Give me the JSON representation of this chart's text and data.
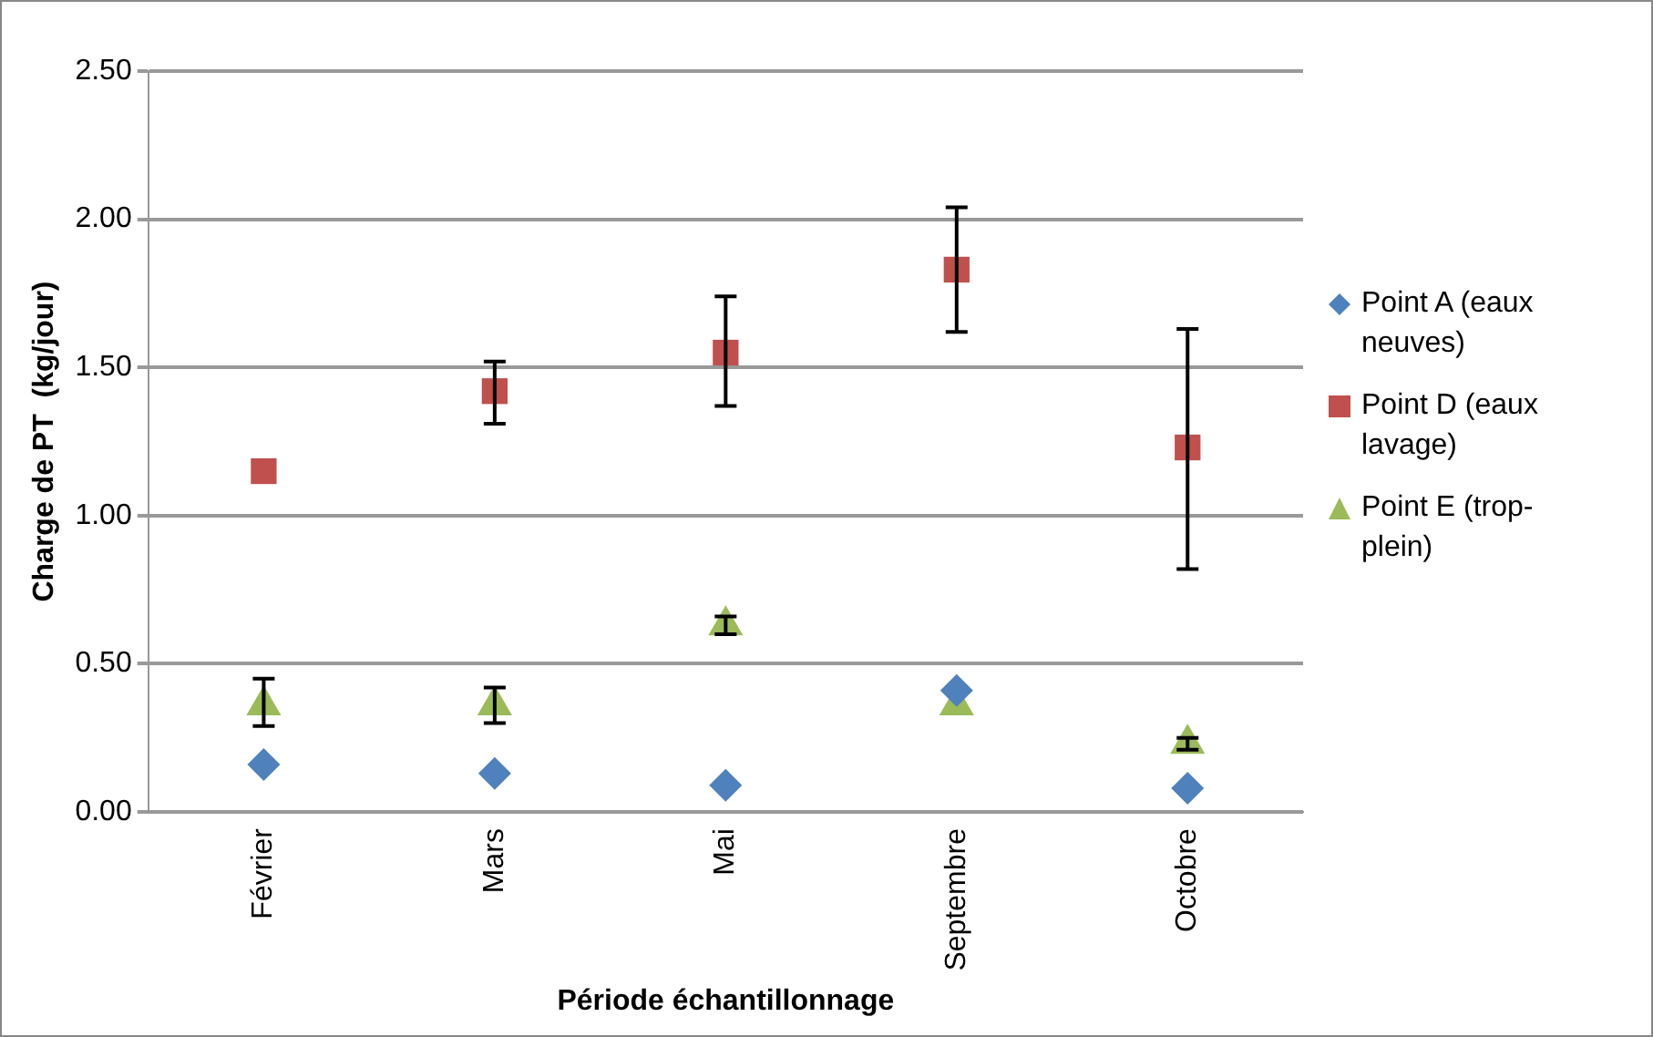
{
  "chart_data": {
    "type": "scatter",
    "xlabel": "Période échantillonnage",
    "ylabel": "Charge de PT  (kg/jour)",
    "categories": [
      "Février",
      "Mars",
      "Mai",
      "Septembre",
      "Octobre"
    ],
    "ylim": [
      0,
      2.5
    ],
    "yticks": [
      {
        "value": 0,
        "label": "0.00"
      },
      {
        "value": 0.5,
        "label": "0.50"
      },
      {
        "value": 1,
        "label": "1.00"
      },
      {
        "value": 1.5,
        "label": "1.50"
      },
      {
        "value": 2,
        "label": "2.00"
      },
      {
        "value": 2.5,
        "label": "2.50"
      }
    ],
    "grid": "y",
    "legend": "right",
    "series": [
      {
        "name": "Point A (eaux neuves)",
        "color": "#4f81bd",
        "marker": "diamond",
        "values": [
          0.16,
          0.13,
          0.09,
          0.41,
          0.08
        ]
      },
      {
        "name": "Point D (eaux lavage)",
        "color": "#c0504d",
        "marker": "square",
        "values": [
          1.15,
          1.42,
          1.55,
          1.83,
          1.23
        ],
        "errors": [
          null,
          [
            1.31,
            1.52
          ],
          [
            1.37,
            1.74
          ],
          [
            1.62,
            2.04
          ],
          [
            0.82,
            1.63
          ]
        ]
      },
      {
        "name": "Point E (trop-plein)",
        "color": "#9bbb59",
        "marker": "triangle",
        "values": [
          0.36,
          0.36,
          0.63,
          0.36,
          0.23
        ],
        "errors": [
          [
            0.29,
            0.45
          ],
          0.06,
          0.03,
          null,
          0.02
        ]
      }
    ]
  }
}
